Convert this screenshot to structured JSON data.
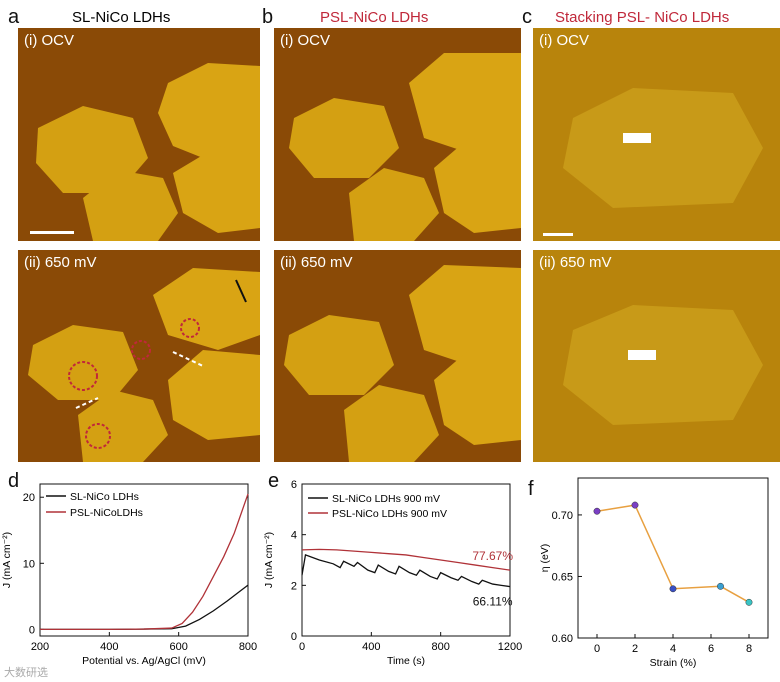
{
  "letters": {
    "a": "a",
    "b": "b",
    "c": "c",
    "d": "d",
    "e": "e",
    "f": "f"
  },
  "columns": {
    "a": {
      "title": "SL-NiCo LDHs",
      "title_color": "#000000"
    },
    "b": {
      "title": "PSL-NiCo LDHs",
      "title_color": "#c0283a"
    },
    "c": {
      "title": "Stacking PSL- NiCo LDHs",
      "title_color": "#c0283a"
    }
  },
  "image_labels": {
    "top": "(i) OCV",
    "bottom": "(ii) 650 mV"
  },
  "colors": {
    "afm_bg": "#8a4a06",
    "afm_flake": "#d9a414",
    "red": "#b03238",
    "black": "#111111",
    "orange": "#e8a040"
  },
  "chart_data": [
    {
      "type": "line",
      "id": "d",
      "xlabel": "Potential vs. Ag/AgCl (mV)",
      "ylabel": "J (mA cm⁻²)",
      "xlim": [
        200,
        800
      ],
      "ylim": [
        -1,
        22
      ],
      "xticks": [
        200,
        400,
        600,
        800
      ],
      "yticks": [
        0,
        10,
        20
      ],
      "legend_position": "top-left",
      "series": [
        {
          "name": "SL-NiCo LDHs",
          "color": "#111111",
          "x": [
            200,
            300,
            400,
            500,
            580,
            620,
            660,
            700,
            740,
            780,
            800
          ],
          "y": [
            0,
            0,
            0,
            0.05,
            0.1,
            0.5,
            1.5,
            2.8,
            4.3,
            5.9,
            6.7
          ]
        },
        {
          "name": "PSL-NiCoLDHs",
          "color": "#b03238",
          "x": [
            200,
            300,
            400,
            500,
            580,
            610,
            640,
            670,
            700,
            730,
            760,
            780,
            800
          ],
          "y": [
            0,
            0,
            0,
            0.05,
            0.2,
            0.9,
            2.6,
            5,
            8,
            11,
            14.5,
            17.5,
            20.5
          ]
        }
      ]
    },
    {
      "type": "line",
      "id": "e",
      "xlabel": "Time (s)",
      "ylabel": "J (mA cm⁻²)",
      "xlim": [
        0,
        1200
      ],
      "ylim": [
        0,
        6
      ],
      "xticks": [
        0,
        400,
        800,
        1200
      ],
      "yticks": [
        0,
        2,
        4,
        6
      ],
      "legend_position": "top",
      "series": [
        {
          "name": "SL-NiCo LDHs 900 mV",
          "color": "#111111",
          "x": [
            0,
            20,
            100,
            180,
            220,
            240,
            300,
            320,
            380,
            420,
            440,
            500,
            540,
            560,
            620,
            660,
            680,
            740,
            780,
            800,
            860,
            900,
            920,
            980,
            1020,
            1040,
            1100,
            1150,
            1200
          ],
          "y": [
            2.4,
            3.2,
            3,
            2.85,
            2.7,
            2.95,
            2.75,
            2.9,
            2.6,
            2.5,
            2.8,
            2.55,
            2.45,
            2.75,
            2.5,
            2.4,
            2.6,
            2.35,
            2.25,
            2.5,
            2.3,
            2.2,
            2.35,
            2.15,
            2.05,
            2.2,
            2.05,
            2.0,
            1.95
          ]
        },
        {
          "name": "PSL-NiCo LDHs 900 mV",
          "color": "#b03238",
          "x": [
            0,
            100,
            200,
            300,
            400,
            500,
            600,
            700,
            800,
            900,
            1000,
            1100,
            1200
          ],
          "y": [
            3.4,
            3.42,
            3.4,
            3.35,
            3.3,
            3.25,
            3.2,
            3.1,
            3.0,
            2.9,
            2.8,
            2.7,
            2.6
          ]
        }
      ],
      "annotations": [
        {
          "text": "77.67%",
          "color": "#b03238",
          "x": 1100,
          "y": 3.0
        },
        {
          "text": "66.11%",
          "color": "#111111",
          "x": 1100,
          "y": 1.2
        }
      ]
    },
    {
      "type": "line",
      "id": "f",
      "xlabel": "Strain (%)",
      "ylabel": "η (eV)",
      "xlim": [
        -1,
        9
      ],
      "ylim": [
        0.6,
        0.73
      ],
      "xticks": [
        0,
        2,
        4,
        6,
        8
      ],
      "yticks": [
        0.6,
        0.65,
        0.7
      ],
      "line_color": "#e8a040",
      "points": [
        {
          "x": 0,
          "y": 0.703,
          "color": "#7a3fc4"
        },
        {
          "x": 2,
          "y": 0.708,
          "color": "#7a3fc4"
        },
        {
          "x": 4,
          "y": 0.64,
          "color": "#3a4fc4"
        },
        {
          "x": 6.5,
          "y": 0.642,
          "color": "#3a9fd0"
        },
        {
          "x": 8,
          "y": 0.629,
          "color": "#3ac4c4"
        }
      ]
    }
  ],
  "watermark": "大数研选"
}
